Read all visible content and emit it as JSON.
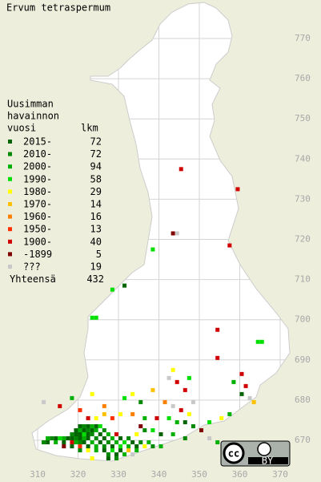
{
  "title": "Ervum tetraspermum",
  "legend": {
    "heading": [
      "Uusimman",
      "havainnon",
      "vuosi"
    ],
    "count_heading": "lkm",
    "items": [
      {
        "label": "2015-",
        "count": 72,
        "color": "#006400"
      },
      {
        "label": "2010-",
        "count": 72,
        "color": "#008800"
      },
      {
        "label": "2000-",
        "count": 94,
        "color": "#00b000"
      },
      {
        "label": "1990-",
        "count": 58,
        "color": "#00e000"
      },
      {
        "label": "1980-",
        "count": 29,
        "color": "#ffff00"
      },
      {
        "label": "1970-",
        "count": 14,
        "color": "#ffc000"
      },
      {
        "label": "1960-",
        "count": 16,
        "color": "#ff8000"
      },
      {
        "label": "1950-",
        "count": 13,
        "color": "#ff3000"
      },
      {
        "label": "1900-",
        "count": 40,
        "color": "#d00000"
      },
      {
        "label": "-1899",
        "count": 5,
        "color": "#800000"
      },
      {
        "label": "???",
        "count": 19,
        "color": "#c8c8c8"
      }
    ],
    "total_label": "Yhteensä",
    "total": 432
  },
  "grid": {
    "northing": [
      770,
      760,
      750,
      740,
      730,
      720,
      710,
      700,
      690,
      680,
      670
    ],
    "easting": [
      310,
      320,
      330,
      340,
      350,
      360,
      370
    ]
  },
  "records": [
    [
      320,
      673,
      0
    ],
    [
      321,
      673,
      1
    ],
    [
      322,
      673,
      0
    ],
    [
      323,
      673,
      2
    ],
    [
      324,
      673,
      0
    ],
    [
      325,
      673,
      3
    ],
    [
      319,
      672,
      0
    ],
    [
      320,
      672,
      2
    ],
    [
      321,
      672,
      0
    ],
    [
      322,
      672,
      1
    ],
    [
      323,
      672,
      0
    ],
    [
      324,
      672,
      2
    ],
    [
      326,
      672,
      1
    ],
    [
      318,
      671,
      1
    ],
    [
      319,
      671,
      0
    ],
    [
      320,
      671,
      0
    ],
    [
      321,
      671,
      3
    ],
    [
      322,
      671,
      0
    ],
    [
      323,
      671,
      1
    ],
    [
      325,
      671,
      0
    ],
    [
      327,
      671,
      2
    ],
    [
      329,
      671,
      8
    ],
    [
      312,
      670,
      2
    ],
    [
      313,
      670,
      1
    ],
    [
      314,
      670,
      0
    ],
    [
      315,
      670,
      3
    ],
    [
      316,
      670,
      2
    ],
    [
      317,
      670,
      0
    ],
    [
      318,
      670,
      0
    ],
    [
      319,
      670,
      1
    ],
    [
      320,
      670,
      0
    ],
    [
      321,
      670,
      2
    ],
    [
      322,
      670,
      0
    ],
    [
      324,
      670,
      1
    ],
    [
      326,
      670,
      0
    ],
    [
      328,
      670,
      2
    ],
    [
      330,
      670,
      0
    ],
    [
      332,
      670,
      1
    ],
    [
      311,
      669,
      1
    ],
    [
      312,
      669,
      0
    ],
    [
      314,
      669,
      2
    ],
    [
      316,
      669,
      0
    ],
    [
      318,
      669,
      8
    ],
    [
      319,
      669,
      2
    ],
    [
      320,
      669,
      1
    ],
    [
      321,
      669,
      0
    ],
    [
      323,
      669,
      2
    ],
    [
      325,
      669,
      0
    ],
    [
      327,
      669,
      1
    ],
    [
      329,
      669,
      2
    ],
    [
      331,
      669,
      3
    ],
    [
      333,
      669,
      0
    ],
    [
      335,
      669,
      1
    ],
    [
      337,
      669,
      2
    ],
    [
      316,
      668,
      9
    ],
    [
      318,
      668,
      0
    ],
    [
      320,
      668,
      7
    ],
    [
      322,
      668,
      0
    ],
    [
      324,
      668,
      2
    ],
    [
      326,
      668,
      1
    ],
    [
      328,
      668,
      0
    ],
    [
      330,
      668,
      3
    ],
    [
      332,
      668,
      2
    ],
    [
      334,
      668,
      0
    ],
    [
      336,
      668,
      4
    ],
    [
      338,
      668,
      1
    ],
    [
      340,
      668,
      2
    ],
    [
      320,
      667,
      1
    ],
    [
      322,
      667,
      4
    ],
    [
      324,
      667,
      2
    ],
    [
      326,
      667,
      0
    ],
    [
      328,
      667,
      3
    ],
    [
      330,
      667,
      0
    ],
    [
      332,
      667,
      5
    ],
    [
      334,
      667,
      2
    ],
    [
      327,
      666,
      1
    ],
    [
      329,
      666,
      0
    ],
    [
      331,
      666,
      2
    ],
    [
      333,
      666,
      10
    ],
    [
      323,
      665,
      4
    ],
    [
      327,
      665,
      0
    ],
    [
      329,
      665,
      1
    ],
    [
      322,
      675,
      8
    ],
    [
      324,
      675,
      4
    ],
    [
      326,
      676,
      5
    ],
    [
      328,
      675,
      7
    ],
    [
      330,
      676,
      4
    ],
    [
      333,
      676,
      6
    ],
    [
      336,
      675,
      2
    ],
    [
      339,
      675,
      8
    ],
    [
      342,
      675,
      3
    ],
    [
      344,
      674,
      2
    ],
    [
      346,
      674,
      0
    ],
    [
      348,
      673,
      1
    ],
    [
      350,
      672,
      9
    ],
    [
      352,
      674,
      3
    ],
    [
      355,
      675,
      4
    ],
    [
      357,
      676,
      2
    ],
    [
      331,
      680,
      3
    ],
    [
      333,
      681,
      4
    ],
    [
      335,
      679,
      1
    ],
    [
      338,
      682,
      5
    ],
    [
      341,
      679,
      6
    ],
    [
      343,
      678,
      10
    ],
    [
      345,
      677,
      8
    ],
    [
      347,
      676,
      4
    ],
    [
      326,
      678,
      6
    ],
    [
      320,
      677,
      7
    ],
    [
      315,
      678,
      8
    ],
    [
      318,
      680,
      2
    ],
    [
      323,
      681,
      4
    ],
    [
      346,
      682,
      8
    ],
    [
      348,
      679,
      10
    ],
    [
      360,
      681,
      0
    ],
    [
      362,
      680,
      10
    ],
    [
      361,
      683,
      8
    ],
    [
      358,
      684,
      2
    ],
    [
      363,
      679,
      5
    ],
    [
      346,
      670,
      1
    ],
    [
      343,
      671,
      2
    ],
    [
      340,
      671,
      0
    ],
    [
      338,
      672,
      3
    ],
    [
      336,
      672,
      1
    ],
    [
      334,
      671,
      4
    ],
    [
      335,
      673,
      9
    ],
    [
      352,
      670,
      10
    ],
    [
      354,
      669,
      2
    ],
    [
      345,
      737,
      8
    ],
    [
      359,
      732,
      8
    ],
    [
      343,
      721,
      9
    ],
    [
      344,
      721,
      10
    ],
    [
      357,
      718,
      8
    ],
    [
      338,
      717,
      3
    ],
    [
      331,
      708,
      0
    ],
    [
      328,
      707,
      3
    ],
    [
      323,
      700,
      3
    ],
    [
      324,
      700,
      3
    ],
    [
      354,
      697,
      8
    ],
    [
      364,
      694,
      3
    ],
    [
      365,
      694,
      3
    ],
    [
      354,
      690,
      8
    ],
    [
      360,
      686,
      8
    ],
    [
      343,
      687,
      4
    ],
    [
      342,
      685,
      10
    ],
    [
      344,
      684,
      8
    ],
    [
      347,
      685,
      3
    ],
    [
      311,
      679,
      10
    ]
  ],
  "license": "BY"
}
